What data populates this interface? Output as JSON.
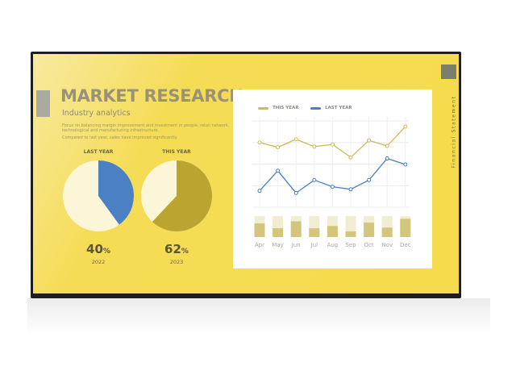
{
  "header": {
    "title": "MARKET RESEARCH",
    "subtitle": "Industry analytics",
    "description": "Focus on balancing margin improvement and investment in people, retail network, technological and manufacturing infrastructure.",
    "note": "Compared to last year, sales have improved significantly."
  },
  "side_label": "Financial Statement",
  "colors": {
    "screen": "#f6db4c",
    "this_year": "#c9bd55",
    "last_year": "#4a7fc1",
    "pie_blue": "#4b80c3",
    "pie_olive": "#bba430",
    "pie_bg": "#fcf6d8",
    "bar_fill": "#d3c67c",
    "bar_bg": "#f1edd2"
  },
  "pies": [
    {
      "label": "LAST YEAR",
      "percent": "40",
      "unit": "%",
      "year": "2022",
      "value": 40,
      "color": "#4b80c3"
    },
    {
      "label": "THIS YEAR",
      "percent": "62",
      "unit": "%",
      "year": "2023",
      "value": 62,
      "color": "#bba430"
    }
  ],
  "chart_data": {
    "type": "line",
    "categories": [
      "Apr",
      "May",
      "Jun",
      "Jul",
      "Aug",
      "Sep",
      "Oct",
      "Nov",
      "Dec"
    ],
    "grid": true,
    "legend": "top-left",
    "ylim": [
      0,
      4
    ],
    "series": [
      {
        "name": "THIS YEAR",
        "color": "#c9bd55",
        "values": [
          3.0,
          2.78,
          3.15,
          2.81,
          2.91,
          2.31,
          3.1,
          2.84,
          3.74
        ]
      },
      {
        "name": "LAST YEAR",
        "color": "#4a7fc1",
        "values": [
          0.76,
          1.69,
          0.66,
          1.26,
          0.95,
          0.83,
          1.26,
          2.26,
          1.98
        ]
      }
    ],
    "bars": {
      "type": "bar",
      "max": 1,
      "values": [
        0.65,
        0.42,
        0.75,
        0.42,
        0.53,
        0.27,
        0.69,
        0.45,
        0.87
      ]
    }
  }
}
